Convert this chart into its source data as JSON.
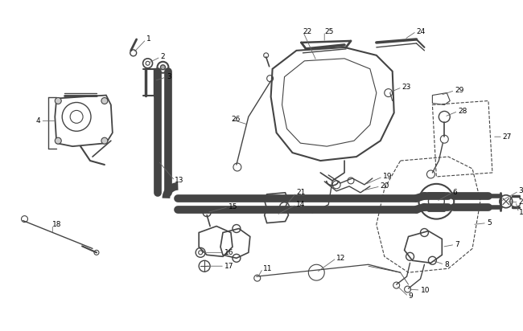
{
  "bg_color": "#ffffff",
  "line_color": "#444444",
  "text_color": "#000000",
  "label_fontsize": 6.5,
  "fig_width": 6.5,
  "fig_height": 4.12,
  "dpi": 100
}
